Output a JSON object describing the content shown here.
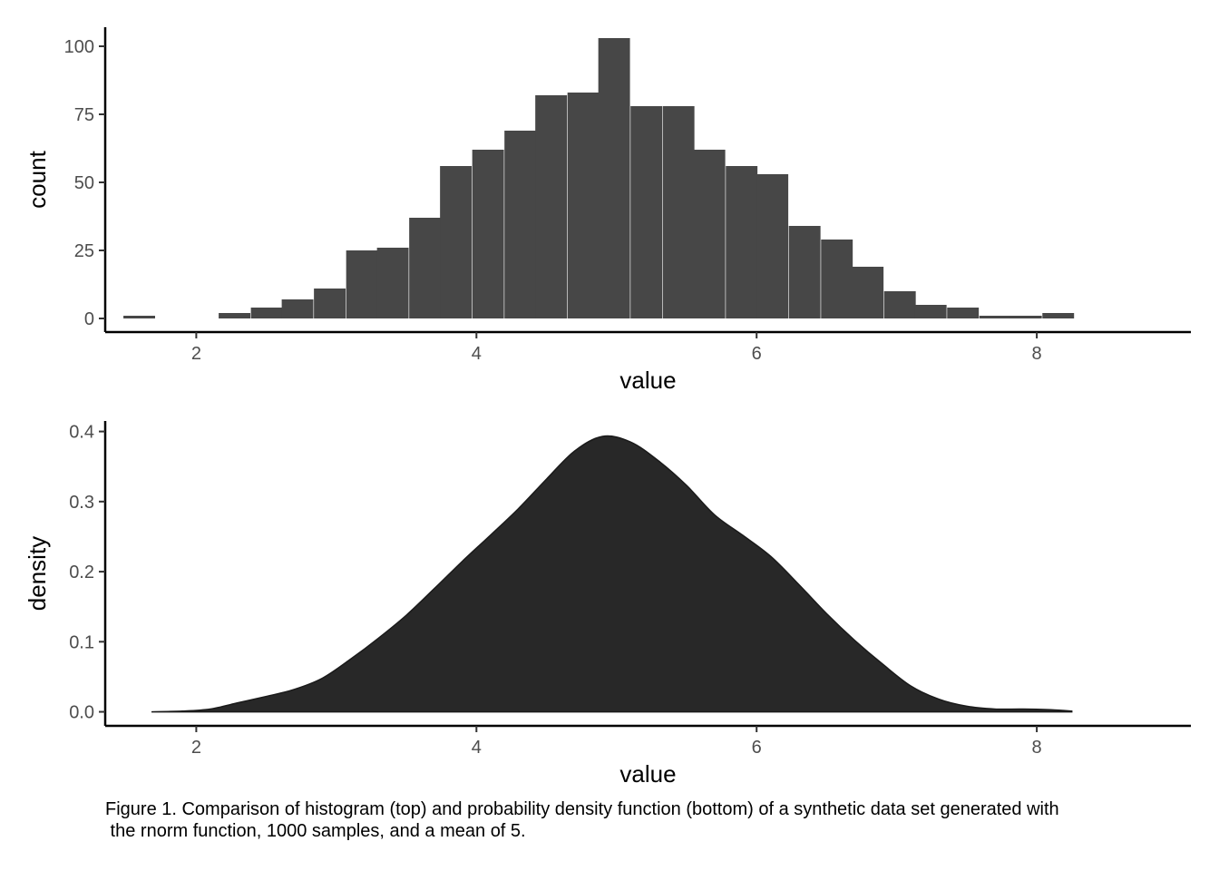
{
  "chart_data": [
    {
      "type": "bar",
      "subtype": "histogram",
      "xlabel": "value",
      "ylabel": "count",
      "xlim": [
        1.35,
        9.1
      ],
      "ylim": [
        -5,
        107
      ],
      "x_ticks": [
        2,
        4,
        6,
        8
      ],
      "y_ticks": [
        0,
        25,
        50,
        75,
        100
      ],
      "bar_color": "#474747",
      "bin_width": 0.226,
      "bin_starts": [
        1.48,
        1.71,
        1.94,
        2.16,
        2.39,
        2.61,
        2.84,
        3.07,
        3.29,
        3.52,
        3.74,
        3.97,
        4.2,
        4.42,
        4.65,
        4.87,
        5.1,
        5.33,
        5.55,
        5.78,
        6.0,
        6.23,
        6.46,
        6.68,
        6.91,
        7.13,
        7.36,
        7.59,
        7.81,
        8.04
      ],
      "counts": [
        1,
        0,
        0,
        2,
        4,
        7,
        11,
        25,
        26,
        37,
        56,
        62,
        69,
        82,
        83,
        103,
        78,
        78,
        62,
        56,
        53,
        34,
        29,
        19,
        10,
        5,
        4,
        1,
        1,
        2
      ],
      "grid": false,
      "legend": "none"
    },
    {
      "type": "area",
      "subtype": "density",
      "xlabel": "value",
      "ylabel": "density",
      "xlim": [
        1.35,
        9.1
      ],
      "ylim": [
        -0.02,
        0.415
      ],
      "x_ticks": [
        2,
        4,
        6,
        8
      ],
      "y_ticks": [
        0.0,
        0.1,
        0.2,
        0.3,
        0.4
      ],
      "y_tick_labels": [
        "0.0",
        "0.1",
        "0.2",
        "0.3",
        "0.4"
      ],
      "fill_color": "#282828",
      "x": [
        1.68,
        1.9,
        2.1,
        2.3,
        2.5,
        2.7,
        2.9,
        3.1,
        3.3,
        3.5,
        3.7,
        3.9,
        4.1,
        4.3,
        4.5,
        4.7,
        4.9,
        5.1,
        5.3,
        5.5,
        5.7,
        5.9,
        6.1,
        6.3,
        6.5,
        6.7,
        6.9,
        7.1,
        7.3,
        7.5,
        7.7,
        7.9,
        8.1,
        8.25
      ],
      "y": [
        0.0,
        0.001,
        0.004,
        0.013,
        0.022,
        0.032,
        0.048,
        0.075,
        0.105,
        0.138,
        0.176,
        0.215,
        0.252,
        0.29,
        0.332,
        0.372,
        0.393,
        0.385,
        0.358,
        0.323,
        0.281,
        0.252,
        0.222,
        0.182,
        0.14,
        0.102,
        0.068,
        0.037,
        0.018,
        0.008,
        0.004,
        0.004,
        0.003,
        0.001
      ],
      "grid": false,
      "legend": "none"
    }
  ],
  "caption": {
    "line1": "Figure 1. Comparison of histogram (top) and probability density function (bottom) of a synthetic data set generated with",
    "line2": " the rnorm function, 1000 samples, and a mean of 5."
  }
}
